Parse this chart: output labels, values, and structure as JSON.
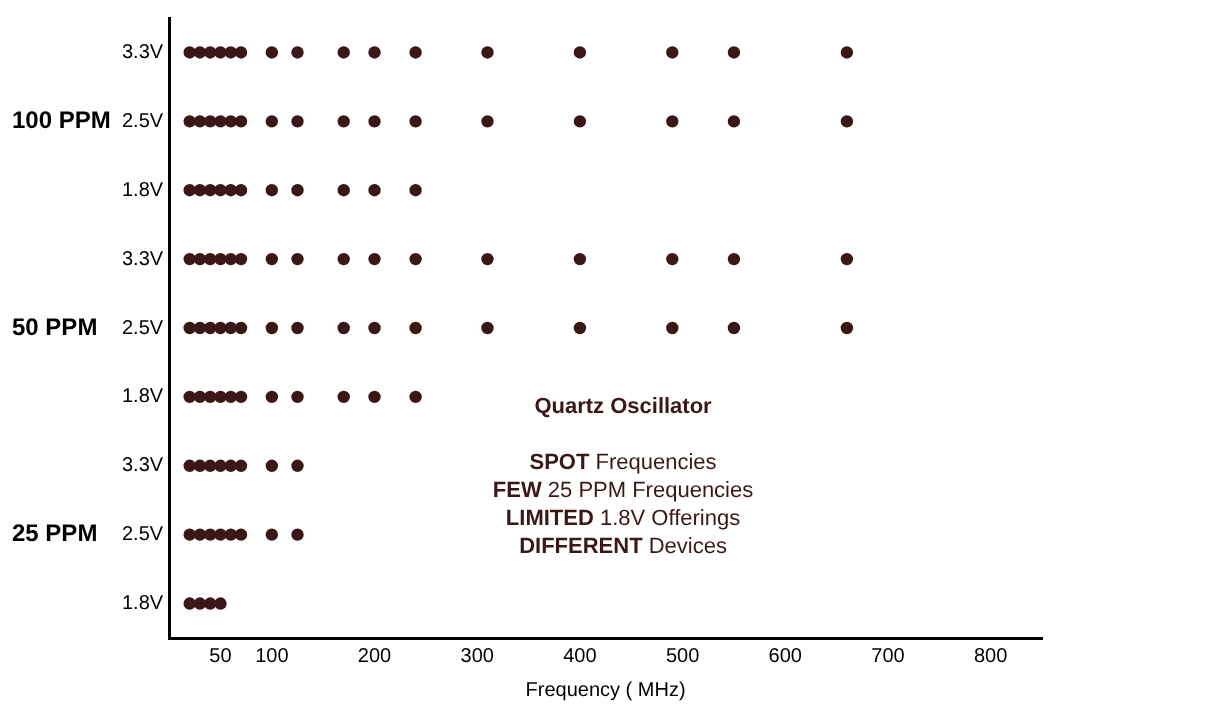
{
  "chart_data": {
    "type": "scatter",
    "orientation": "horizontal",
    "title": "Quartz Oscillator",
    "xlabel": "Frequency ( MHz)",
    "xlim": [
      0,
      850
    ],
    "xticks": [
      50,
      100,
      200,
      300,
      400,
      500,
      600,
      700,
      800
    ],
    "marker": "circle",
    "categories": [
      "3.3V",
      "2.5V",
      "1.8V",
      "3.3V",
      "2.5V",
      "1.8V",
      "3.3V",
      "2.5V",
      "1.8V"
    ],
    "series": [
      {
        "color": "#3b1717",
        "values": [
          20,
          20,
          20,
          20,
          20,
          20,
          20,
          20,
          20
        ]
      },
      {
        "color": "#3b1717",
        "values": [
          30,
          30,
          30,
          30,
          30,
          30,
          30,
          30,
          30
        ]
      },
      {
        "color": "#3b1717",
        "values": [
          40,
          40,
          40,
          40,
          40,
          40,
          40,
          40,
          40
        ]
      },
      {
        "color": "#3b1717",
        "values": [
          50,
          50,
          50,
          50,
          50,
          50,
          50,
          50,
          50
        ]
      },
      {
        "color": "#3b1717",
        "values": [
          60,
          60,
          60,
          60,
          60,
          60,
          60,
          60,
          null
        ]
      },
      {
        "color": "#3b1717",
        "values": [
          70,
          70,
          70,
          70,
          70,
          70,
          70,
          70,
          null
        ]
      },
      {
        "color": "#3b1717",
        "values": [
          100,
          100,
          100,
          100,
          100,
          100,
          100,
          100,
          null
        ]
      },
      {
        "color": "#3b1717",
        "values": [
          125,
          125,
          125,
          125,
          125,
          125,
          125,
          125,
          null
        ]
      },
      {
        "color": "#3b1717",
        "values": [
          170,
          170,
          170,
          170,
          170,
          170,
          null,
          null,
          null
        ]
      },
      {
        "color": "#3b1717",
        "values": [
          200,
          200,
          200,
          200,
          200,
          200,
          null,
          null,
          null
        ]
      },
      {
        "color": "#3b1717",
        "values": [
          240,
          240,
          240,
          240,
          240,
          240,
          null,
          null,
          null
        ]
      },
      {
        "color": "#3b1717",
        "values": [
          310,
          310,
          null,
          310,
          310,
          null,
          null,
          null,
          null
        ]
      },
      {
        "color": "#3b1717",
        "values": [
          400,
          400,
          null,
          400,
          400,
          null,
          null,
          null,
          null
        ]
      },
      {
        "color": "#3b1717",
        "values": [
          490,
          490,
          null,
          490,
          490,
          null,
          null,
          null,
          null
        ]
      },
      {
        "color": "#3b1717",
        "values": [
          550,
          550,
          null,
          550,
          550,
          null,
          null,
          null,
          null
        ]
      },
      {
        "color": "#3b1717",
        "values": [
          660,
          660,
          null,
          660,
          660,
          null,
          null,
          null,
          null
        ]
      }
    ],
    "annotations": [
      "100 PPM",
      "50 PPM",
      "25 PPM",
      "SPOT Frequencies",
      "FEW 25 PPM Frequencies",
      "LIMITED 1.8V Offerings",
      "DIFFERENT Devices"
    ]
  }
}
